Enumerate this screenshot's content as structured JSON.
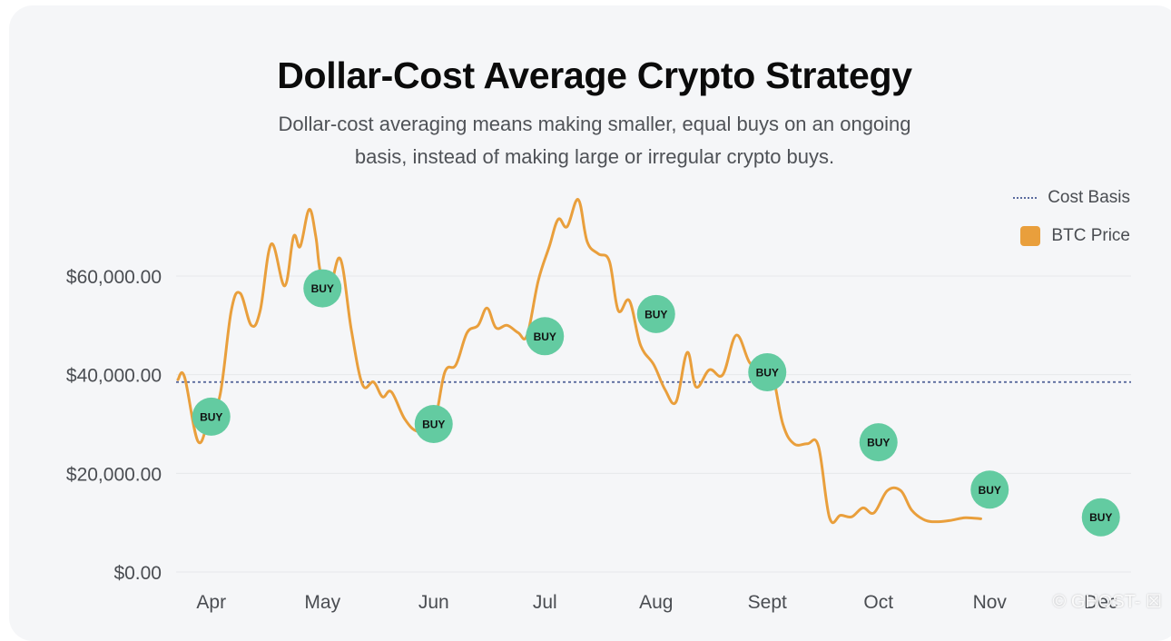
{
  "header": {
    "title": "Dollar-Cost Average Crypto Strategy",
    "subtitle": "Dollar-cost averaging means making smaller, equal buys on an ongoing basis, instead of making large or irregular crypto buys."
  },
  "legend": {
    "cost_basis_label": "Cost Basis",
    "btc_price_label": "BTC Price"
  },
  "watermark": "© GHOST- ☒",
  "colors": {
    "line": "#e99f3c",
    "cost_basis": "#5b6b9e",
    "buy_marker": "#63cba1",
    "grid": "#e6e8eb"
  },
  "chart_data": {
    "type": "line",
    "title": "Dollar-Cost Average Crypto Strategy",
    "xlabel": "",
    "ylabel": "",
    "x_domain": [
      0,
      9
    ],
    "ylim": [
      0,
      80000
    ],
    "months": [
      {
        "label": "Apr",
        "x": 0.3
      },
      {
        "label": "May",
        "x": 1.3
      },
      {
        "label": "Jun",
        "x": 2.3
      },
      {
        "label": "Jul",
        "x": 3.3
      },
      {
        "label": "Aug",
        "x": 4.3
      },
      {
        "label": "Sept",
        "x": 5.3
      },
      {
        "label": "Oct",
        "x": 6.3
      },
      {
        "label": "Nov",
        "x": 7.3
      },
      {
        "label": "Dec",
        "x": 8.3
      }
    ],
    "y_ticks": [
      {
        "value": 0,
        "label": "$0.00"
      },
      {
        "value": 20000,
        "label": "$20,000.00"
      },
      {
        "value": 40000,
        "label": "$40,000.00"
      },
      {
        "value": 60000,
        "label": "$60,000.00"
      }
    ],
    "cost_basis": 38500,
    "series": [
      {
        "name": "BTC Price",
        "points": [
          [
            0.0,
            39000
          ],
          [
            0.06,
            39500
          ],
          [
            0.18,
            26500
          ],
          [
            0.28,
            31000
          ],
          [
            0.38,
            36000
          ],
          [
            0.48,
            53000
          ],
          [
            0.56,
            56500
          ],
          [
            0.66,
            50000
          ],
          [
            0.74,
            53000
          ],
          [
            0.84,
            66500
          ],
          [
            0.96,
            58000
          ],
          [
            1.04,
            68000
          ],
          [
            1.1,
            66000
          ],
          [
            1.18,
            73500
          ],
          [
            1.24,
            68000
          ],
          [
            1.28,
            61000
          ],
          [
            1.36,
            57000
          ],
          [
            1.46,
            63500
          ],
          [
            1.56,
            49000
          ],
          [
            1.66,
            38000
          ],
          [
            1.76,
            38500
          ],
          [
            1.84,
            35500
          ],
          [
            1.92,
            36500
          ],
          [
            2.04,
            31000
          ],
          [
            2.16,
            28500
          ],
          [
            2.3,
            30000
          ],
          [
            2.4,
            40500
          ],
          [
            2.5,
            42000
          ],
          [
            2.6,
            48500
          ],
          [
            2.7,
            50000
          ],
          [
            2.78,
            53500
          ],
          [
            2.86,
            49500
          ],
          [
            2.96,
            50000
          ],
          [
            3.06,
            48500
          ],
          [
            3.14,
            48000
          ],
          [
            3.24,
            59000
          ],
          [
            3.34,
            66000
          ],
          [
            3.42,
            71500
          ],
          [
            3.5,
            70000
          ],
          [
            3.6,
            75500
          ],
          [
            3.68,
            67000
          ],
          [
            3.78,
            64500
          ],
          [
            3.88,
            63000
          ],
          [
            3.96,
            53000
          ],
          [
            4.06,
            55000
          ],
          [
            4.16,
            46000
          ],
          [
            4.28,
            42000
          ],
          [
            4.38,
            37000
          ],
          [
            4.48,
            34500
          ],
          [
            4.58,
            44500
          ],
          [
            4.66,
            37500
          ],
          [
            4.78,
            41000
          ],
          [
            4.9,
            40000
          ],
          [
            5.02,
            48000
          ],
          [
            5.14,
            42500
          ],
          [
            5.24,
            41000
          ],
          [
            5.34,
            40500
          ],
          [
            5.44,
            30000
          ],
          [
            5.54,
            26000
          ],
          [
            5.66,
            26000
          ],
          [
            5.76,
            25500
          ],
          [
            5.86,
            11000
          ],
          [
            5.96,
            11500
          ],
          [
            6.06,
            11200
          ],
          [
            6.16,
            13000
          ],
          [
            6.26,
            12000
          ],
          [
            6.38,
            16500
          ],
          [
            6.5,
            16500
          ],
          [
            6.6,
            12500
          ],
          [
            6.72,
            10500
          ],
          [
            6.84,
            10200
          ],
          [
            6.96,
            10500
          ],
          [
            7.08,
            11000
          ],
          [
            7.22,
            10800
          ]
        ]
      }
    ],
    "buy_markers": [
      {
        "label": "BUY",
        "x": 0.3,
        "value": 31500
      },
      {
        "label": "BUY",
        "x": 1.3,
        "value": 57500
      },
      {
        "label": "BUY",
        "x": 2.3,
        "value": 30000
      },
      {
        "label": "BUY",
        "x": 3.3,
        "value": 47800
      },
      {
        "label": "BUY",
        "x": 4.3,
        "value": 52300
      },
      {
        "label": "BUY",
        "x": 5.3,
        "value": 40500
      },
      {
        "label": "BUY",
        "x": 6.3,
        "value": 26300
      },
      {
        "label": "BUY",
        "x": 7.3,
        "value": 16700
      },
      {
        "label": "BUY",
        "x": 8.3,
        "value": 11100
      }
    ]
  }
}
